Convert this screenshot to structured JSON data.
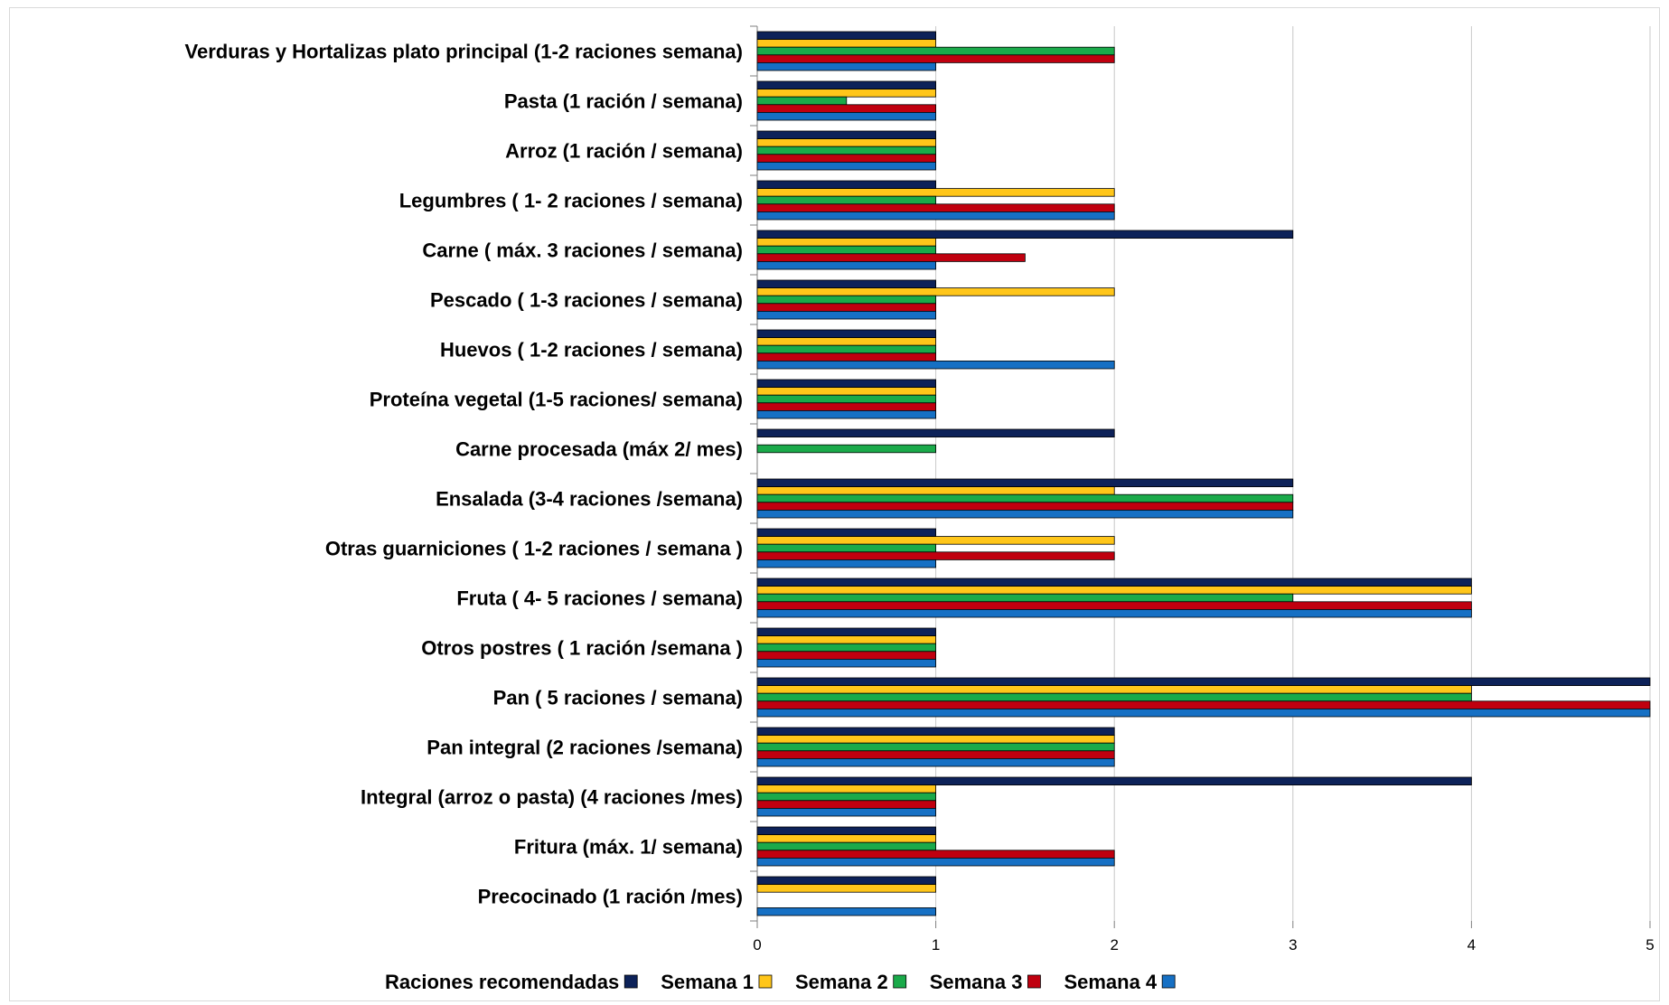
{
  "chart_data": {
    "type": "bar",
    "orientation": "horizontal",
    "title": "",
    "xlabel": "",
    "ylabel": "",
    "xlim": [
      0,
      5
    ],
    "xticks": [
      "0",
      "1",
      "2",
      "3",
      "4",
      "5"
    ],
    "grid": true,
    "legend_position": "bottom",
    "categories": [
      "Verduras y Hortalizas plato principal (1-2 raciones semana)",
      "Pasta (1 ración / semana)",
      "Arroz (1 ración / semana)",
      "Legumbres (  1- 2 raciones / semana)",
      "Carne ( máx. 3 raciones / semana)",
      "Pescado ( 1-3 raciones / semana)",
      "Huevos ( 1-2 raciones / semana)",
      "Proteína vegetal (1-5 raciones/ semana)",
      "Carne procesada (máx 2/ mes)",
      "Ensalada (3-4 raciones /semana)",
      "Otras guarniciones ( 1-2 raciones / semana )",
      "Fruta ( 4- 5 raciones / semana)",
      "Otros postres ( 1 ración /semana )",
      "Pan ( 5 raciones / semana)",
      "Pan integral (2 raciones /semana)",
      "Integral (arroz o pasta) (4 raciones /mes)",
      "Fritura (máx. 1/ semana)",
      "Precocinado (1 ración /mes)"
    ],
    "series": [
      {
        "name": "Raciones recomendadas",
        "color": "#0d2259",
        "values": [
          1,
          1,
          1,
          1,
          3,
          1,
          1,
          1,
          2,
          3,
          1,
          4,
          1,
          5,
          2,
          4,
          1,
          1
        ]
      },
      {
        "name": "Semana 1",
        "color": "#ffc61a",
        "values": [
          1,
          1,
          1,
          2,
          1,
          2,
          1,
          1,
          0,
          2,
          2,
          4,
          1,
          4,
          2,
          1,
          1,
          1
        ]
      },
      {
        "name": "Semana 2",
        "color": "#1aaa4a",
        "values": [
          2,
          0.5,
          1,
          1,
          1,
          1,
          1,
          1,
          1,
          3,
          1,
          3,
          1,
          4,
          2,
          1,
          1,
          0
        ]
      },
      {
        "name": "Semana 3",
        "color": "#c0000f",
        "values": [
          2,
          1,
          1,
          2,
          1.5,
          1,
          1,
          1,
          0,
          3,
          2,
          4,
          1,
          5,
          2,
          1,
          2,
          0
        ]
      },
      {
        "name": "Semana 4",
        "color": "#1670c4",
        "values": [
          1,
          1,
          1,
          2,
          1,
          1,
          2,
          1,
          0,
          3,
          1,
          4,
          1,
          5,
          2,
          1,
          2,
          1
        ]
      }
    ]
  }
}
